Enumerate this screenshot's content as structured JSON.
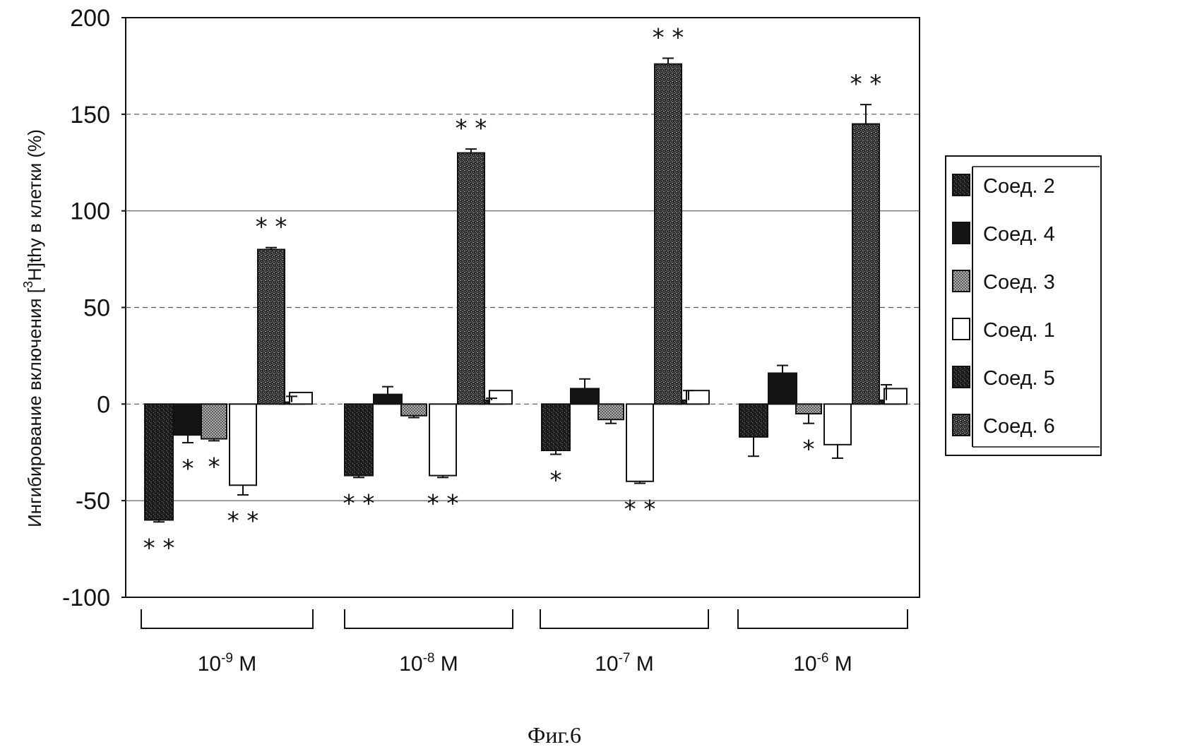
{
  "chart_data": {
    "type": "bar",
    "title": "",
    "caption": "Фиг.6",
    "ylabel": {
      "prefix": "Ингибирование включения [",
      "sup": "3",
      "suffix": "H]thy в клетки (%)"
    },
    "xlabel": "",
    "ylim": [
      -100,
      200
    ],
    "yticks": [
      "200",
      "150",
      "100",
      "50",
      "0",
      "-50",
      "-100"
    ],
    "ytick_values": [
      200,
      150,
      100,
      50,
      0,
      -50,
      -100
    ],
    "grid": "horizontal dotted",
    "legend_position": "right",
    "categories": [
      {
        "base": "10",
        "exp": "-9",
        "unit": " M"
      },
      {
        "base": "10",
        "exp": "-8",
        "unit": " M"
      },
      {
        "base": "10",
        "exp": "-7",
        "unit": " M"
      },
      {
        "base": "10",
        "exp": "-6",
        "unit": " M"
      }
    ],
    "series": [
      {
        "name": "Соед. 2",
        "fill": "dark-speckle",
        "values": [
          -60,
          -37,
          -24,
          -17
        ],
        "errors": [
          1,
          1,
          2,
          10
        ],
        "stars": [
          "**",
          "**",
          "*",
          ""
        ]
      },
      {
        "name": "Соед. 4",
        "fill": "solid-black",
        "values": [
          -16,
          5,
          8,
          16
        ],
        "errors": [
          4,
          4,
          5,
          4
        ],
        "stars": [
          "*",
          "",
          "",
          ""
        ]
      },
      {
        "name": "Соед. 3",
        "fill": "grey-check",
        "values": [
          -18,
          -6,
          -8,
          -5
        ],
        "errors": [
          1,
          1,
          2,
          5
        ],
        "stars": [
          "*",
          "",
          "",
          "*"
        ]
      },
      {
        "name": "Соед. 1",
        "fill": "white",
        "values": [
          -42,
          -37,
          -40,
          -21
        ],
        "errors": [
          5,
          1,
          1,
          7
        ],
        "stars": [
          "**",
          "**",
          "**",
          ""
        ]
      },
      {
        "name": "Соед. 5",
        "fill": "dark-speckle",
        "values": [
          1,
          2,
          2,
          2
        ],
        "errors": [
          3,
          1,
          5,
          8
        ],
        "stars": [
          "",
          "",
          "",
          ""
        ]
      },
      {
        "name": "Соед. 6",
        "fill": "dense-speckle",
        "values": [
          80,
          130,
          176,
          145
        ],
        "errors": [
          1,
          2,
          3,
          10
        ],
        "stars": [
          "**",
          "**",
          "**",
          "**"
        ]
      },
      {
        "name": "",
        "fill": "white",
        "values": [
          6,
          7,
          7,
          8
        ],
        "errors": [
          0,
          0,
          0,
          0
        ],
        "stars": [
          "",
          "",
          "",
          ""
        ]
      }
    ],
    "colors": {
      "ink": "#111111",
      "grey": "#6a6a6a",
      "light": "#bdbdbd"
    }
  }
}
